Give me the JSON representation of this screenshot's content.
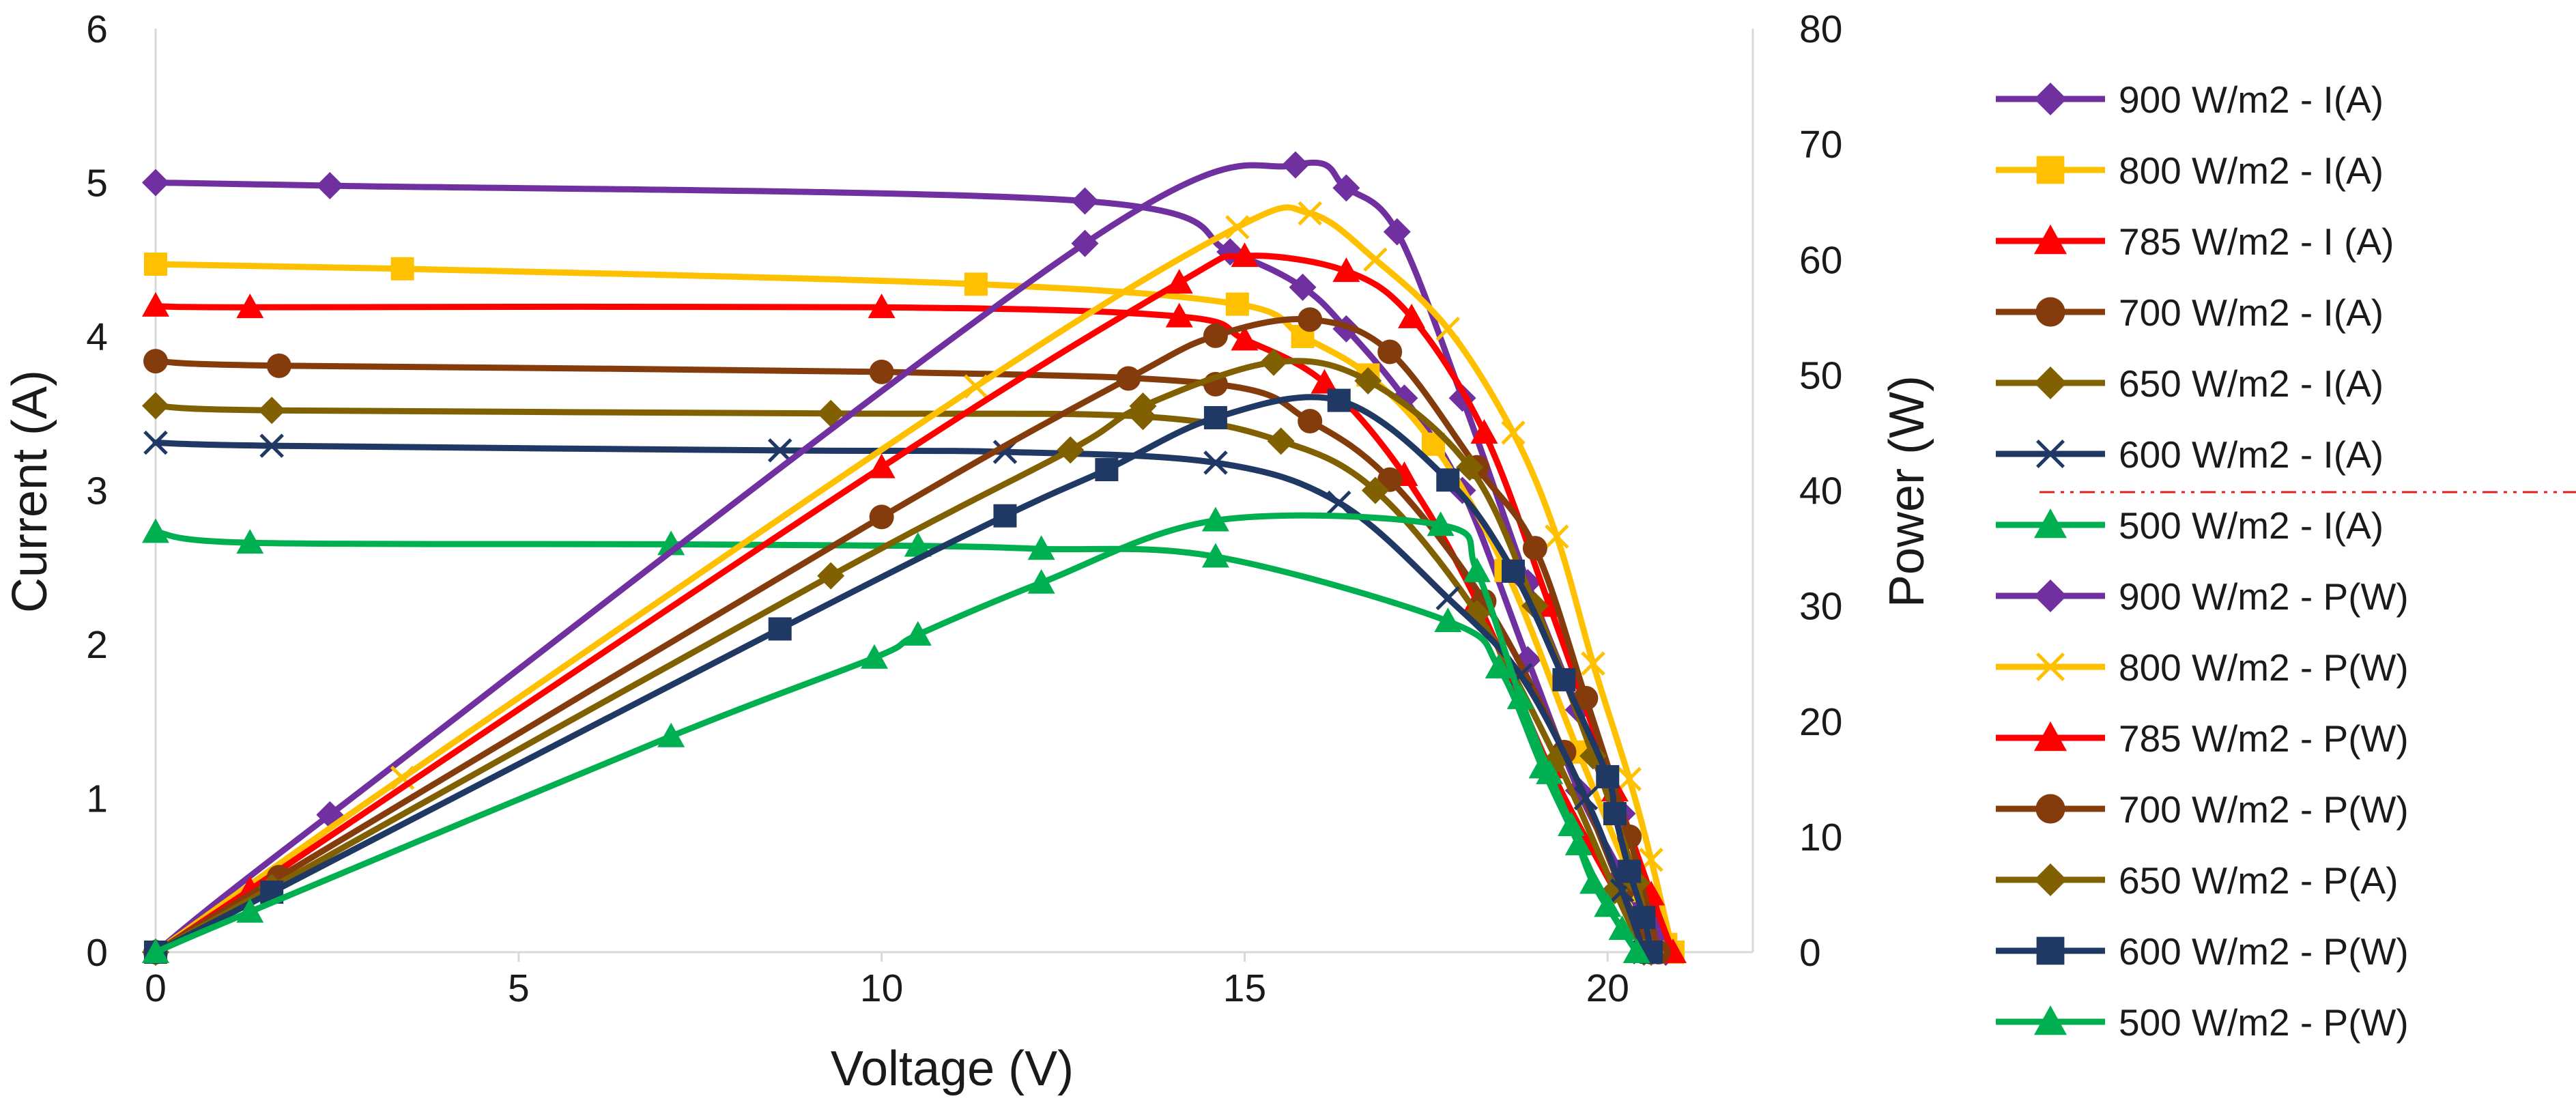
{
  "chart_data": {
    "type": "line",
    "title": "",
    "xlabel": "Voltage (V)",
    "ylabel": "Current (A)",
    "y2label": "Power (W)",
    "xlim": [
      0,
      22
    ],
    "ylim": [
      0,
      6
    ],
    "y2lim": [
      0,
      80
    ],
    "xticks": [
      "0",
      "5",
      "10",
      "15",
      "20"
    ],
    "yticks": [
      "0",
      "1",
      "2",
      "3",
      "4",
      "5",
      "6"
    ],
    "y2ticks": [
      "0",
      "10",
      "20",
      "30",
      "40",
      "50",
      "60",
      "70",
      "80"
    ],
    "legend_position": "right",
    "series": [
      {
        "name": "900 W/m2 - I(A)",
        "axis": "left",
        "color": "#7030A0",
        "marker": "diamond",
        "points": [
          [
            0,
            5.0
          ],
          [
            2.4,
            4.98
          ],
          [
            12.8,
            4.88
          ],
          [
            14.8,
            4.55
          ],
          [
            15.8,
            4.32
          ],
          [
            16.4,
            4.05
          ],
          [
            17.2,
            3.6
          ],
          [
            18.0,
            3.0
          ],
          [
            18.9,
            1.9
          ],
          [
            19.6,
            1.05
          ],
          [
            20.2,
            0.5
          ],
          [
            20.6,
            0.1
          ],
          [
            20.8,
            0.0
          ]
        ]
      },
      {
        "name": "800 W/m2 - I(A)",
        "axis": "left",
        "color": "#FFC000",
        "marker": "square",
        "points": [
          [
            0,
            4.47
          ],
          [
            3.4,
            4.44
          ],
          [
            11.3,
            4.34
          ],
          [
            14.9,
            4.21
          ],
          [
            15.8,
            4.0
          ],
          [
            16.7,
            3.75
          ],
          [
            17.6,
            3.3
          ],
          [
            18.6,
            2.48
          ],
          [
            19.6,
            1.3
          ],
          [
            20.4,
            0.4
          ],
          [
            20.8,
            0.05
          ],
          [
            20.9,
            0.0
          ]
        ]
      },
      {
        "name": "785 W/m2 - I (A)",
        "axis": "left",
        "color": "#FF0000",
        "marker": "triangle",
        "points": [
          [
            0,
            4.2
          ],
          [
            1.3,
            4.19
          ],
          [
            10.0,
            4.19
          ],
          [
            14.1,
            4.13
          ],
          [
            15.0,
            3.98
          ],
          [
            16.1,
            3.7
          ],
          [
            17.2,
            3.1
          ],
          [
            18.2,
            2.28
          ],
          [
            19.2,
            1.2
          ],
          [
            20.1,
            0.4
          ],
          [
            20.6,
            0.0
          ]
        ]
      },
      {
        "name": "700 W/m2 - I(A)",
        "axis": "left",
        "color": "#843C0C",
        "marker": "circle",
        "points": [
          [
            0,
            3.84
          ],
          [
            1.7,
            3.81
          ],
          [
            10.0,
            3.77
          ],
          [
            14.6,
            3.69
          ],
          [
            15.9,
            3.45
          ],
          [
            17.0,
            3.07
          ],
          [
            18.3,
            2.28
          ],
          [
            19.4,
            1.3
          ],
          [
            20.2,
            0.4
          ],
          [
            20.6,
            0.0
          ]
        ]
      },
      {
        "name": "650 W/m2 - I(A)",
        "axis": "left",
        "color": "#806000",
        "marker": "diamond",
        "points": [
          [
            0,
            3.55
          ],
          [
            1.6,
            3.52
          ],
          [
            9.3,
            3.5
          ],
          [
            13.6,
            3.48
          ],
          [
            15.5,
            3.32
          ],
          [
            16.8,
            3.0
          ],
          [
            18.2,
            2.2
          ],
          [
            19.3,
            1.25
          ],
          [
            20.1,
            0.4
          ],
          [
            20.5,
            0.0
          ]
        ]
      },
      {
        "name": "600 W/m2 - I(A)",
        "axis": "left",
        "color": "#203864",
        "marker": "x",
        "points": [
          [
            0,
            3.31
          ],
          [
            1.6,
            3.29
          ],
          [
            8.6,
            3.26
          ],
          [
            11.7,
            3.25
          ],
          [
            14.6,
            3.18
          ],
          [
            16.3,
            2.92
          ],
          [
            17.8,
            2.3
          ],
          [
            18.8,
            1.8
          ],
          [
            19.7,
            1.0
          ],
          [
            20.2,
            0.4
          ],
          [
            20.5,
            0.0
          ]
        ]
      },
      {
        "name": "500 W/m2 - I(A)",
        "axis": "left",
        "color": "#00B050",
        "marker": "triangle",
        "points": [
          [
            0,
            2.73
          ],
          [
            1.3,
            2.66
          ],
          [
            7.1,
            2.65
          ],
          [
            10.5,
            2.64
          ],
          [
            12.2,
            2.62
          ],
          [
            14.6,
            2.57
          ],
          [
            17.8,
            2.15
          ],
          [
            18.5,
            1.85
          ],
          [
            19.1,
            1.2
          ],
          [
            19.6,
            0.7
          ],
          [
            20.0,
            0.3
          ],
          [
            20.4,
            0.0
          ]
        ]
      },
      {
        "name": "900 W/m2 - P(W)",
        "axis": "right",
        "color": "#7030A0",
        "marker": "diamond",
        "points": [
          [
            0,
            0
          ],
          [
            2.4,
            11.9
          ],
          [
            12.8,
            61.4
          ],
          [
            15.7,
            68.2
          ],
          [
            16.4,
            66.2
          ],
          [
            17.1,
            62.4
          ],
          [
            18.0,
            48.0
          ],
          [
            18.9,
            32.0
          ],
          [
            19.6,
            21.0
          ],
          [
            20.2,
            12.0
          ],
          [
            20.6,
            4.0
          ],
          [
            20.8,
            0.0
          ]
        ]
      },
      {
        "name": "800 W/m2 - P(W)",
        "axis": "right",
        "color": "#FFC000",
        "marker": "x",
        "points": [
          [
            0,
            0
          ],
          [
            3.4,
            15.1
          ],
          [
            11.3,
            49.0
          ],
          [
            14.9,
            62.8
          ],
          [
            15.9,
            64.0
          ],
          [
            16.8,
            60.0
          ],
          [
            17.8,
            54.0
          ],
          [
            18.7,
            45.0
          ],
          [
            19.3,
            36.0
          ],
          [
            19.8,
            25.0
          ],
          [
            20.3,
            15.0
          ],
          [
            20.6,
            8.0
          ],
          [
            20.9,
            0.0
          ]
        ]
      },
      {
        "name": "785 W/m2 - P(W)",
        "axis": "right",
        "color": "#FF0000",
        "marker": "triangle",
        "points": [
          [
            0,
            0
          ],
          [
            1.3,
            5.4
          ],
          [
            10.0,
            42.0
          ],
          [
            14.1,
            58.0
          ],
          [
            15.0,
            60.3
          ],
          [
            16.4,
            59.0
          ],
          [
            17.3,
            55.0
          ],
          [
            18.3,
            45.0
          ],
          [
            19.2,
            30.0
          ],
          [
            20.1,
            14.0
          ],
          [
            20.6,
            5.0
          ],
          [
            20.9,
            0.0
          ]
        ]
      },
      {
        "name": "700 W/m2 - P(W)",
        "axis": "right",
        "color": "#843C0C",
        "marker": "circle",
        "points": [
          [
            0,
            0
          ],
          [
            1.7,
            6.5
          ],
          [
            10.0,
            37.7
          ],
          [
            13.4,
            49.7
          ],
          [
            14.6,
            53.4
          ],
          [
            15.9,
            54.8
          ],
          [
            17.0,
            52.0
          ],
          [
            18.2,
            42.0
          ],
          [
            19.0,
            35.0
          ],
          [
            19.7,
            22.0
          ],
          [
            20.3,
            10.0
          ],
          [
            20.7,
            0.0
          ]
        ]
      },
      {
        "name": "650 W/m2 - P(A)",
        "axis": "right",
        "color": "#806000",
        "marker": "diamond",
        "points": [
          [
            0,
            0
          ],
          [
            1.6,
            5.6
          ],
          [
            9.3,
            32.6
          ],
          [
            12.6,
            43.5
          ],
          [
            13.6,
            47.3
          ],
          [
            15.4,
            51.1
          ],
          [
            16.7,
            49.5
          ],
          [
            18.1,
            42.0
          ],
          [
            19.0,
            30.0
          ],
          [
            19.8,
            17.0
          ],
          [
            20.4,
            6.0
          ],
          [
            20.6,
            0.0
          ]
        ]
      },
      {
        "name": "600 W/m2 - P(W)",
        "axis": "right",
        "color": "#203864",
        "marker": "square",
        "points": [
          [
            0,
            0
          ],
          [
            1.6,
            5.2
          ],
          [
            8.6,
            28.0
          ],
          [
            11.7,
            37.8
          ],
          [
            13.1,
            41.8
          ],
          [
            14.6,
            46.3
          ],
          [
            16.3,
            47.8
          ],
          [
            17.8,
            40.9
          ],
          [
            18.7,
            33.0
          ],
          [
            19.4,
            23.6
          ],
          [
            20.0,
            15.2
          ],
          [
            20.1,
            12.0
          ],
          [
            20.3,
            7.0
          ],
          [
            20.5,
            3.0
          ],
          [
            20.6,
            0.0
          ]
        ]
      },
      {
        "name": "500 W/m2 - P(W)",
        "axis": "right",
        "color": "#00B050",
        "marker": "triangle",
        "points": [
          [
            0,
            0
          ],
          [
            1.3,
            3.5
          ],
          [
            7.1,
            18.7
          ],
          [
            9.9,
            25.5
          ],
          [
            10.5,
            27.5
          ],
          [
            12.2,
            32.0
          ],
          [
            14.6,
            37.4
          ],
          [
            17.7,
            37.0
          ],
          [
            18.2,
            33.0
          ],
          [
            18.8,
            22.0
          ],
          [
            19.2,
            15.5
          ],
          [
            19.5,
            11.0
          ],
          [
            19.8,
            6.0
          ],
          [
            20.2,
            2.0
          ],
          [
            20.4,
            0.0
          ]
        ]
      }
    ]
  }
}
